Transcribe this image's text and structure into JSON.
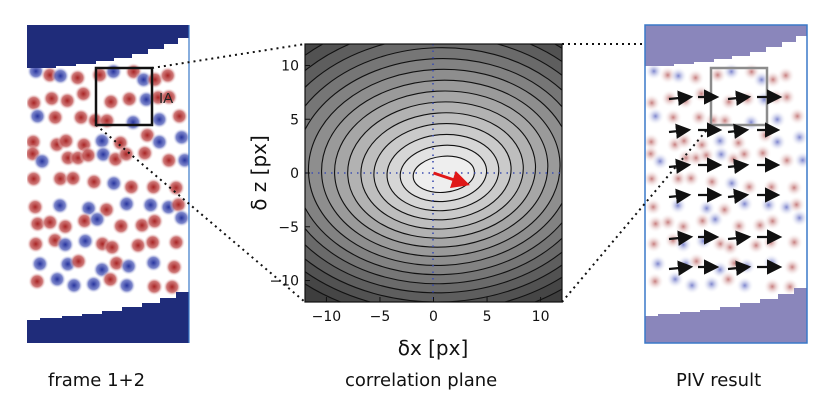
{
  "panels": {
    "left": {
      "caption": "frame 1+2",
      "ia_label": "IA"
    },
    "center": {
      "caption": "correlation plane"
    },
    "right": {
      "caption": "PIV result"
    }
  },
  "plot": {
    "xlabel": "δx [px]",
    "ylabel": "δ z [px]",
    "x_ticks": [
      "−10",
      "−5",
      "0",
      "5",
      "10"
    ],
    "y_ticks": [
      "−10",
      "−5",
      "0",
      "5",
      "10"
    ],
    "xlim": [
      -12,
      12
    ],
    "ylim": [
      12,
      -12
    ],
    "peak_displacement": {
      "dx": 3,
      "dz": -1
    }
  },
  "colors": {
    "frame_band_dark": "#1f2c7a",
    "frame_band_light": "#8a86bb",
    "particle_red": "#b22a2a",
    "particle_blue": "#2b3aa8",
    "ia_box": "#111111",
    "ia_box_result": "#8c8c8c",
    "vector": "#111111",
    "peak_arrow": "#e01818",
    "frame_border": "#3a78c8"
  }
}
